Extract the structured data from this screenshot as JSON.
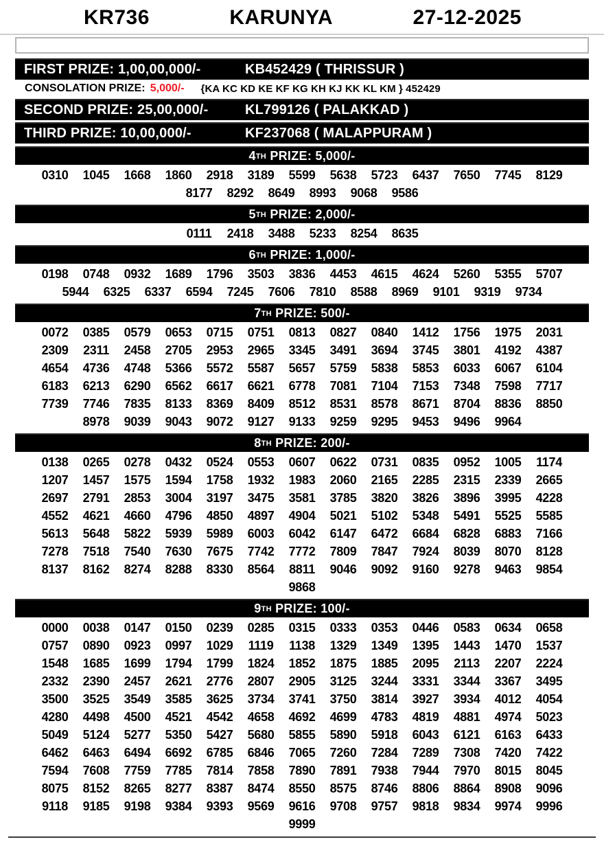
{
  "header": {
    "draw_code": "KR736",
    "lottery_name": "KARUNYA",
    "draw_date": "27-12-2025"
  },
  "search_box": {
    "value": "",
    "placeholder": ""
  },
  "colors": {
    "bar_background": "#000000",
    "bar_text": "#ffffff",
    "consolation_amount_red": "#ee1c24",
    "page_background": "#ffffff"
  },
  "top_prizes": [
    {
      "name": "first",
      "label": "FIRST PRIZE: 1,00,00,000/-",
      "ticket": "KB452429 ( THRISSUR )"
    },
    {
      "name": "second",
      "label": "SECOND PRIZE: 25,00,000/-",
      "ticket": "KL799126 ( PALAKKAD )"
    },
    {
      "name": "third",
      "label": "THIRD PRIZE: 10,00,000/-",
      "ticket": "KF237068 ( MALAPPURAM )"
    }
  ],
  "consolation": {
    "label": "CONSOLATION PRIZE:",
    "amount": "5,000/-",
    "series": "{KA KC KD KE KF KG KH KJ KK KL KM } 452429"
  },
  "sections": [
    {
      "ordinal": "4",
      "suffix": "TH",
      "label": "PRIZE: 5,000/-",
      "numbers": [
        "0310",
        "1045",
        "1668",
        "1860",
        "2918",
        "3189",
        "5599",
        "5638",
        "5723",
        "6437",
        "7650",
        "7745",
        "8129",
        "8177",
        "8292",
        "8649",
        "8993",
        "9068",
        "9586"
      ]
    },
    {
      "ordinal": "5",
      "suffix": "TH",
      "label": "PRIZE: 2,000/-",
      "numbers": [
        "0111",
        "2418",
        "3488",
        "5233",
        "8254",
        "8635"
      ]
    },
    {
      "ordinal": "6",
      "suffix": "TH",
      "label": "PRIZE: 1,000/-",
      "numbers": [
        "0198",
        "0748",
        "0932",
        "1689",
        "1796",
        "3503",
        "3836",
        "4453",
        "4615",
        "4624",
        "5260",
        "5355",
        "5707",
        "5944",
        "6325",
        "6337",
        "6594",
        "7245",
        "7606",
        "7810",
        "8588",
        "8969",
        "9101",
        "9319",
        "9734"
      ]
    },
    {
      "ordinal": "7",
      "suffix": "TH",
      "label": "PRIZE: 500/-",
      "numbers": [
        "0072",
        "0385",
        "0579",
        "0653",
        "0715",
        "0751",
        "0813",
        "0827",
        "0840",
        "1412",
        "1756",
        "1975",
        "2031",
        "2309",
        "2311",
        "2458",
        "2705",
        "2953",
        "2965",
        "3345",
        "3491",
        "3694",
        "3745",
        "3801",
        "4192",
        "4387",
        "4654",
        "4736",
        "4748",
        "5366",
        "5572",
        "5587",
        "5657",
        "5759",
        "5838",
        "5853",
        "6033",
        "6067",
        "6104",
        "6183",
        "6213",
        "6290",
        "6562",
        "6617",
        "6621",
        "6778",
        "7081",
        "7104",
        "7153",
        "7348",
        "7598",
        "7717",
        "7739",
        "7746",
        "7835",
        "8133",
        "8369",
        "8409",
        "8512",
        "8531",
        "8578",
        "8671",
        "8704",
        "8836",
        "8850",
        "8978",
        "9039",
        "9043",
        "9072",
        "9127",
        "9133",
        "9259",
        "9295",
        "9453",
        "9496",
        "9964"
      ]
    },
    {
      "ordinal": "8",
      "suffix": "TH",
      "label": "PRIZE: 200/-",
      "numbers": [
        "0138",
        "0265",
        "0278",
        "0432",
        "0524",
        "0553",
        "0607",
        "0622",
        "0731",
        "0835",
        "0952",
        "1005",
        "1174",
        "1207",
        "1457",
        "1575",
        "1594",
        "1758",
        "1932",
        "1983",
        "2060",
        "2165",
        "2285",
        "2315",
        "2339",
        "2665",
        "2697",
        "2791",
        "2853",
        "3004",
        "3197",
        "3475",
        "3581",
        "3785",
        "3820",
        "3826",
        "3896",
        "3995",
        "4228",
        "4552",
        "4621",
        "4660",
        "4796",
        "4850",
        "4897",
        "4904",
        "5021",
        "5102",
        "5348",
        "5491",
        "5525",
        "5585",
        "5613",
        "5648",
        "5822",
        "5939",
        "5989",
        "6003",
        "6042",
        "6147",
        "6472",
        "6684",
        "6828",
        "6883",
        "7166",
        "7278",
        "7518",
        "7540",
        "7630",
        "7675",
        "7742",
        "7772",
        "7809",
        "7847",
        "7924",
        "8039",
        "8070",
        "8128",
        "8137",
        "8162",
        "8274",
        "8288",
        "8330",
        "8564",
        "8811",
        "9046",
        "9092",
        "9160",
        "9278",
        "9463",
        "9854",
        "9868"
      ]
    },
    {
      "ordinal": "9",
      "suffix": "TH",
      "label": "PRIZE: 100/-",
      "numbers": [
        "0000",
        "0038",
        "0147",
        "0150",
        "0239",
        "0285",
        "0315",
        "0333",
        "0353",
        "0446",
        "0583",
        "0634",
        "0658",
        "0757",
        "0890",
        "0923",
        "0997",
        "1029",
        "1119",
        "1138",
        "1329",
        "1349",
        "1395",
        "1443",
        "1470",
        "1537",
        "1548",
        "1685",
        "1699",
        "1794",
        "1799",
        "1824",
        "1852",
        "1875",
        "1885",
        "2095",
        "2113",
        "2207",
        "2224",
        "2332",
        "2390",
        "2457",
        "2621",
        "2776",
        "2807",
        "2905",
        "3125",
        "3244",
        "3331",
        "3344",
        "3367",
        "3495",
        "3500",
        "3525",
        "3549",
        "3585",
        "3625",
        "3734",
        "3741",
        "3750",
        "3814",
        "3927",
        "3934",
        "4012",
        "4054",
        "4280",
        "4498",
        "4500",
        "4521",
        "4542",
        "4658",
        "4692",
        "4699",
        "4783",
        "4819",
        "4881",
        "4974",
        "5023",
        "5049",
        "5124",
        "5277",
        "5350",
        "5427",
        "5680",
        "5855",
        "5890",
        "5918",
        "6043",
        "6121",
        "6163",
        "6433",
        "6462",
        "6463",
        "6494",
        "6692",
        "6785",
        "6846",
        "7065",
        "7260",
        "7284",
        "7289",
        "7308",
        "7420",
        "7422",
        "7594",
        "7608",
        "7759",
        "7785",
        "7814",
        "7858",
        "7890",
        "7891",
        "7938",
        "7944",
        "7970",
        "8015",
        "8045",
        "8075",
        "8152",
        "8265",
        "8277",
        "8387",
        "8474",
        "8550",
        "8575",
        "8746",
        "8806",
        "8864",
        "8908",
        "9096",
        "9118",
        "9185",
        "9198",
        "9384",
        "9393",
        "9569",
        "9616",
        "9708",
        "9757",
        "9818",
        "9834",
        "9974",
        "9996",
        "9999"
      ]
    }
  ],
  "layout": {
    "numbers_per_row": 13
  }
}
